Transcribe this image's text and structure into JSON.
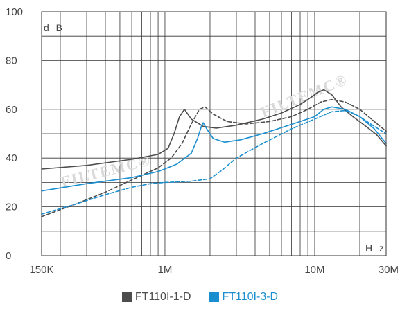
{
  "chart_data": {
    "type": "line",
    "y_unit_label": "d B",
    "x_unit_label": "H z",
    "x_scale": "log",
    "xlim": [
      150000,
      30000000
    ],
    "ylim": [
      0,
      100
    ],
    "grid": true,
    "legend_position": "bottom",
    "x_ticks": [
      {
        "value": 150000,
        "label": "150K"
      },
      {
        "value": 1000000,
        "label": "1M"
      },
      {
        "value": 10000000,
        "label": "10M"
      },
      {
        "value": 30000000,
        "label": "30M"
      }
    ],
    "y_ticks": [
      {
        "value": 0,
        "label": "0"
      },
      {
        "value": 20,
        "label": "20"
      },
      {
        "value": 40,
        "label": "40"
      },
      {
        "value": 60,
        "label": "60"
      },
      {
        "value": 80,
        "label": "80"
      },
      {
        "value": 100,
        "label": "100"
      }
    ],
    "series": [
      {
        "name": "FT110I-1-D",
        "color": "#4d4d4d",
        "style": "solid",
        "x": [
          150000,
          300000,
          600000,
          900000,
          1050000,
          1150000,
          1250000,
          1350000,
          1500000,
          1800000,
          2200000,
          3000000,
          4500000,
          6000000,
          8000000,
          9500000,
          10500000,
          11500000,
          13000000,
          15000000,
          18000000,
          22000000,
          26000000,
          30000000
        ],
        "y": [
          35.5,
          37,
          39.5,
          41.5,
          44,
          50,
          57,
          60,
          56,
          53,
          52.3,
          53.5,
          56,
          58.5,
          62,
          65,
          67,
          68,
          66,
          61,
          57,
          53,
          49.5,
          45
        ]
      },
      {
        "name": "FT110I-1-D",
        "color": "#4d4d4d",
        "style": "dashed",
        "x": [
          150000,
          250000,
          400000,
          600000,
          900000,
          1100000,
          1300000,
          1500000,
          1700000,
          1850000,
          2100000,
          2600000,
          3500000,
          5000000,
          7000000,
          9000000,
          11000000,
          13000000,
          16000000,
          20000000,
          25000000,
          30000000
        ],
        "y": [
          16,
          21,
          26,
          31,
          36,
          40,
          46,
          54,
          60,
          61,
          58,
          55,
          54,
          55,
          57,
          60,
          63,
          64,
          63,
          60,
          55,
          51
        ]
      },
      {
        "name": "FT110I-3-D",
        "color": "#1a8fd0",
        "style": "solid",
        "x": [
          150000,
          300000,
          600000,
          900000,
          1200000,
          1500000,
          1650000,
          1750000,
          1800000,
          1900000,
          2100000,
          2500000,
          3200000,
          4500000,
          6000000,
          8000000,
          10000000,
          11500000,
          13000000,
          16000000,
          20000000,
          25000000,
          30000000
        ],
        "y": [
          26.5,
          29.5,
          32,
          34.5,
          37.5,
          42,
          48,
          53,
          54.5,
          52,
          48,
          46.5,
          47.5,
          50,
          52.5,
          55,
          57,
          60,
          61,
          60,
          57,
          52,
          46
        ]
      },
      {
        "name": "FT110I-3-D",
        "color": "#1a8fd0",
        "style": "dashed",
        "x": [
          150000,
          250000,
          400000,
          600000,
          800000,
          1000000,
          1500000,
          2000000,
          2400000,
          3000000,
          4500000,
          7000000,
          10000000,
          13000000,
          16000000,
          20000000,
          25000000,
          30000000
        ],
        "y": [
          17,
          21,
          25,
          28,
          29.5,
          30,
          30.5,
          31.5,
          35,
          40,
          46,
          52,
          56,
          59,
          59.5,
          57,
          53,
          50
        ]
      }
    ]
  },
  "legend": {
    "items": [
      {
        "label": "FT110I-1-D",
        "color": "#4d4d4d"
      },
      {
        "label": "FT110I-3-D",
        "color": "#1a8fd0"
      }
    ]
  },
  "watermark_text": "FILTEMC®"
}
